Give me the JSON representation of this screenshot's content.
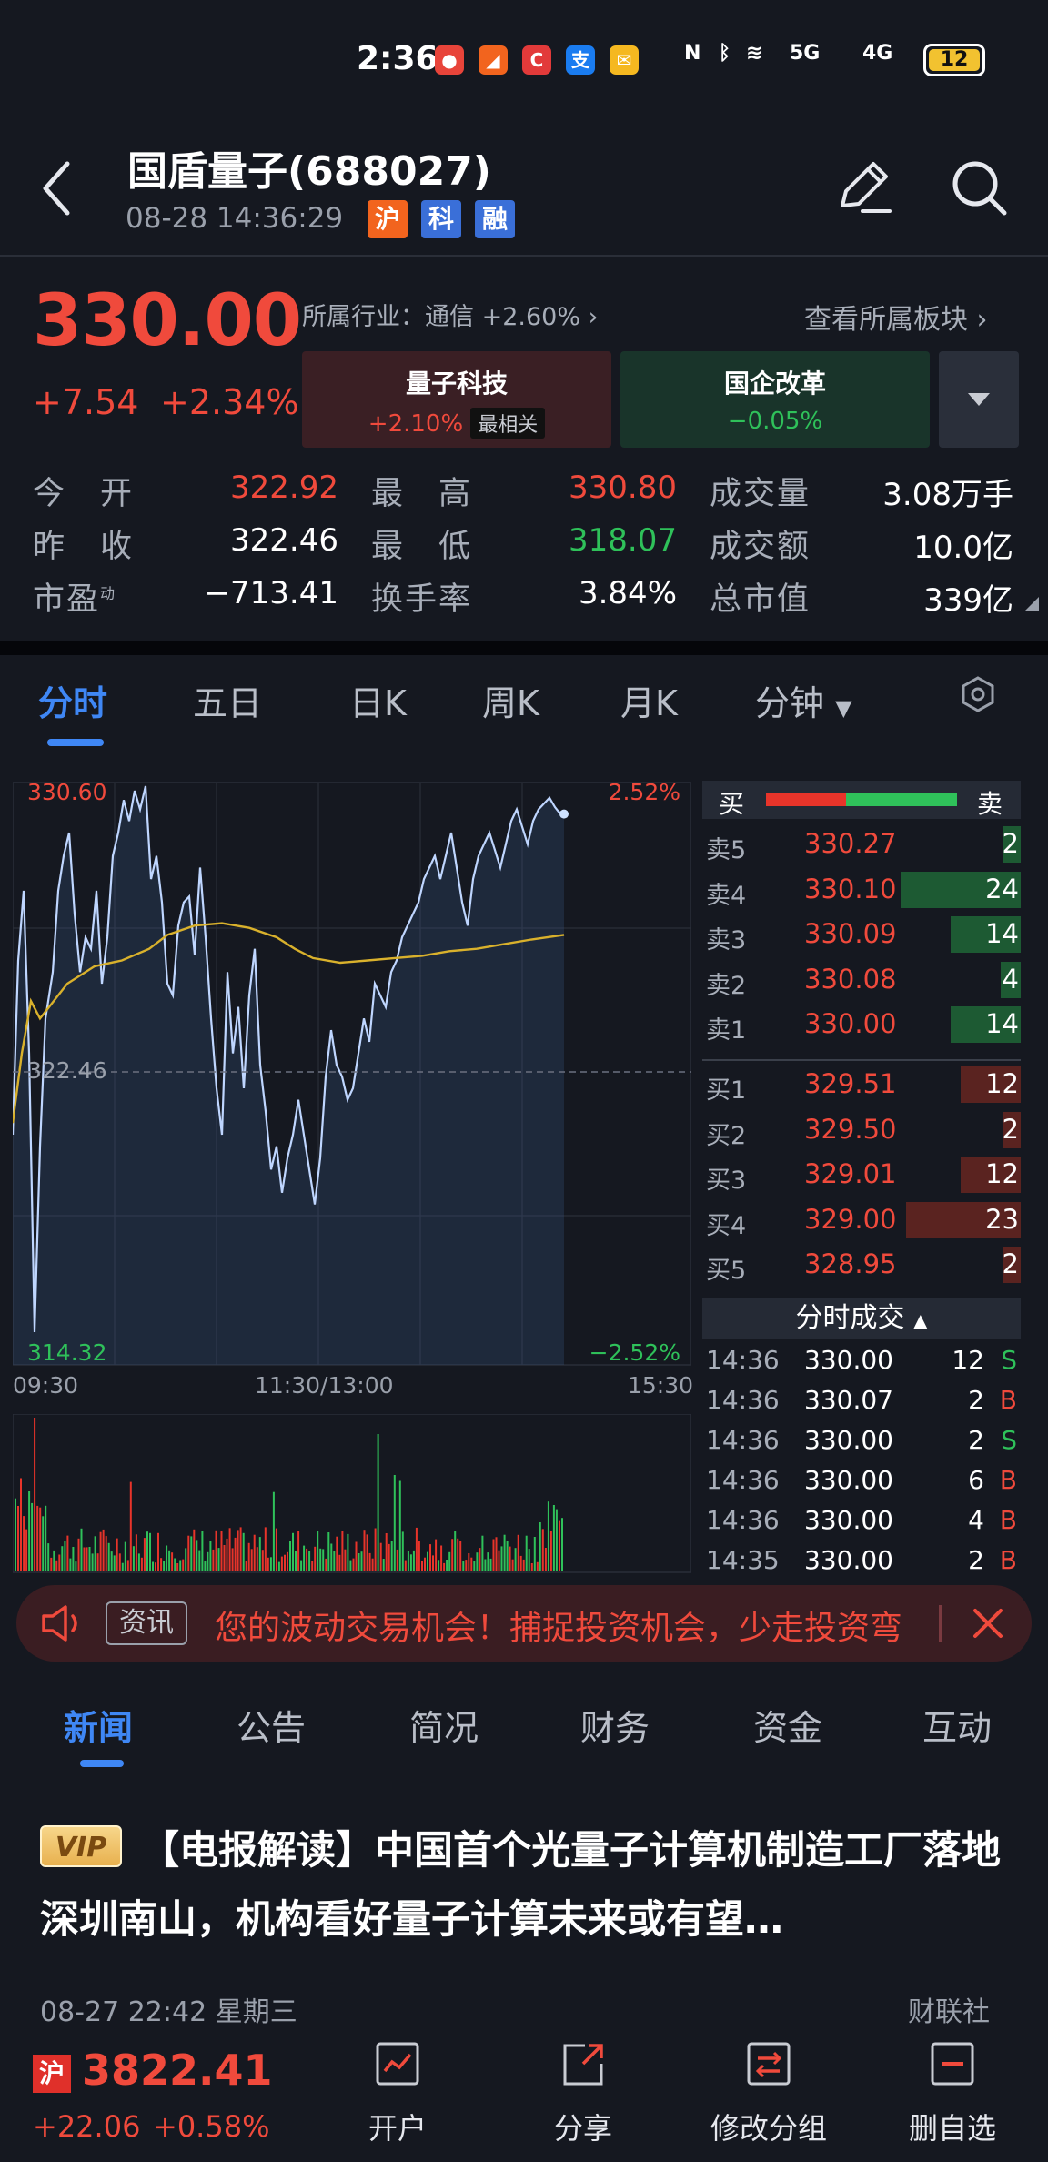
{
  "status_bar": {
    "time": "2:36",
    "network": "5G",
    "network2": "4G",
    "battery": "12"
  },
  "header": {
    "title": "国盾量子(688027)",
    "datetime": "08-28  14:36:29",
    "tags": [
      "沪",
      "科",
      "融"
    ]
  },
  "quote": {
    "price": "330.00",
    "change": "+7.54",
    "change_pct": "+2.34%",
    "industry": "所属行业：通信 +2.60%",
    "view_sector": "查看所属板块",
    "sectors": [
      {
        "name": "量子科技",
        "value": "+2.10%",
        "badge": "最相关"
      },
      {
        "name": "国企改革",
        "value": "−0.05%"
      }
    ],
    "stats": [
      {
        "label": "今　开",
        "value": "322.92",
        "color": "red"
      },
      {
        "label": "最　高",
        "value": "330.80",
        "color": "red"
      },
      {
        "label": "成交量",
        "value": "3.08万手",
        "color": "white"
      },
      {
        "label": "昨　收",
        "value": "322.46",
        "color": "white"
      },
      {
        "label": "最　低",
        "value": "318.07",
        "color": "green"
      },
      {
        "label": "成交额",
        "value": "10.0亿",
        "color": "white"
      },
      {
        "label": "市盈",
        "value": "−713.41",
        "color": "white"
      },
      {
        "label": "换手率",
        "value": "3.84%",
        "color": "white"
      },
      {
        "label": "总市值",
        "value": "339亿",
        "color": "white"
      }
    ],
    "pe_sup": "动"
  },
  "chart_tabs": [
    "分时",
    "五日",
    "日K",
    "周K",
    "月K",
    "分钟"
  ],
  "chart": {
    "high": "330.60",
    "high_pct": "2.52%",
    "prev_close": "322.46",
    "low": "314.32",
    "low_pct": "−2.52%",
    "times": [
      "09:30",
      "11:30/13:00",
      "15:30"
    ]
  },
  "order_book": {
    "head_buy": "买",
    "head_sell": "卖",
    "buy_ratio": 0.42,
    "asks": [
      {
        "label": "卖5",
        "price": "330.27",
        "vol": "2"
      },
      {
        "label": "卖4",
        "price": "330.10",
        "vol": "24"
      },
      {
        "label": "卖3",
        "price": "330.09",
        "vol": "14"
      },
      {
        "label": "卖2",
        "price": "330.08",
        "vol": "4"
      },
      {
        "label": "卖1",
        "price": "330.00",
        "vol": "14"
      }
    ],
    "bids": [
      {
        "label": "买1",
        "price": "329.51",
        "vol": "12"
      },
      {
        "label": "买2",
        "price": "329.50",
        "vol": "2"
      },
      {
        "label": "买3",
        "price": "329.01",
        "vol": "12"
      },
      {
        "label": "买4",
        "price": "329.00",
        "vol": "23"
      },
      {
        "label": "买5",
        "price": "328.95",
        "vol": "2"
      }
    ]
  },
  "tick_trades": {
    "title": "分时成交",
    "rows": [
      {
        "time": "14:36",
        "price": "330.00",
        "vol": "12",
        "side": "S"
      },
      {
        "time": "14:36",
        "price": "330.07",
        "vol": "2",
        "side": "B"
      },
      {
        "time": "14:36",
        "price": "330.00",
        "vol": "2",
        "side": "S"
      },
      {
        "time": "14:36",
        "price": "330.00",
        "vol": "6",
        "side": "B"
      },
      {
        "time": "14:36",
        "price": "330.00",
        "vol": "4",
        "side": "B"
      },
      {
        "time": "14:35",
        "price": "330.00",
        "vol": "2",
        "side": "B"
      }
    ]
  },
  "ticker": {
    "tag": "资讯",
    "text": "您的波动交易机会！捕捉投资机会，少走投资弯"
  },
  "news_tabs": [
    "新闻",
    "公告",
    "简况",
    "财务",
    "资金",
    "互动"
  ],
  "news": {
    "vip": "VIP",
    "title": "【电报解读】中国首个光量子计算机制造工厂落地深圳南山，机构看好量子计算未来或有望…",
    "meta": "08-27 22:42  星期三",
    "source": "财联社"
  },
  "bottom_bar": {
    "index_tag": "沪",
    "index_value": "3822.41",
    "index_change": "+22.06",
    "index_pct": "+0.58%",
    "actions": [
      "开户",
      "分享",
      "修改分组",
      "删自选"
    ]
  }
}
